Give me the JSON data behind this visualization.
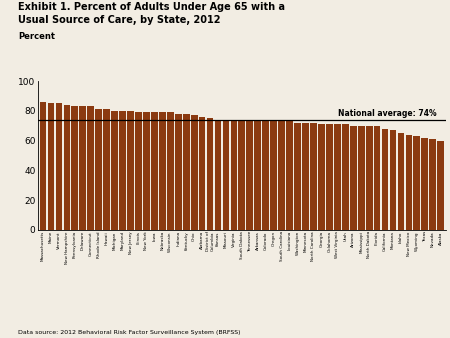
{
  "title_line1": "Exhibit 1. Percent of Adults Under Age 65 with a",
  "title_line2": "Usual Source of Care, by State, 2012",
  "ylabel": "Percent",
  "datasource": "Data source: 2012 Behavioral Risk Factor Surveillance System (BRFSS)",
  "national_average": 74,
  "national_average_label": "National average: 74%",
  "bar_color": "#8B3A10",
  "background_color": "#F2EDE3",
  "ylim": [
    0,
    100
  ],
  "yticks": [
    0,
    20,
    40,
    60,
    80,
    100
  ],
  "states": [
    "Massachusetts",
    "Maine",
    "Vermont",
    "New Hampshire",
    "Pennsylvania",
    "Delaware",
    "Connecticut",
    "Rhode Island",
    "Hawaii",
    "Michigan",
    "Maryland",
    "New Jersey",
    "Illinois",
    "New York",
    "Iowa",
    "Nebraska",
    "Wisconsin",
    "Indiana",
    "Kentucky",
    "Ohio",
    "Alabama",
    "District of\nColumbia",
    "Kansas",
    "Missouri",
    "Virginia",
    "South Dakota",
    "Tennessee",
    "Arkansas",
    "Colorado",
    "Oregon",
    "South Carolina",
    "Louisiana",
    "Washington",
    "Minnesota",
    "North Carolina",
    "Georgia",
    "Oklahoma",
    "West Virginia",
    "Utah",
    "Arizona",
    "Mississippi",
    "North Dakota",
    "Florida",
    "California",
    "Montana",
    "Idaho",
    "New Mexico",
    "Wyoming",
    "Texas",
    "Nevada",
    "Alaska"
  ],
  "values": [
    86,
    85,
    85,
    84,
    83,
    83,
    83,
    81,
    81,
    80,
    80,
    80,
    79,
    79,
    79,
    79,
    79,
    78,
    78,
    77,
    76,
    75,
    74,
    74,
    74,
    74,
    74,
    73,
    73,
    73,
    73,
    73,
    72,
    72,
    72,
    71,
    71,
    71,
    71,
    70,
    70,
    70,
    70,
    68,
    67,
    65,
    64,
    63,
    62,
    61,
    60
  ]
}
